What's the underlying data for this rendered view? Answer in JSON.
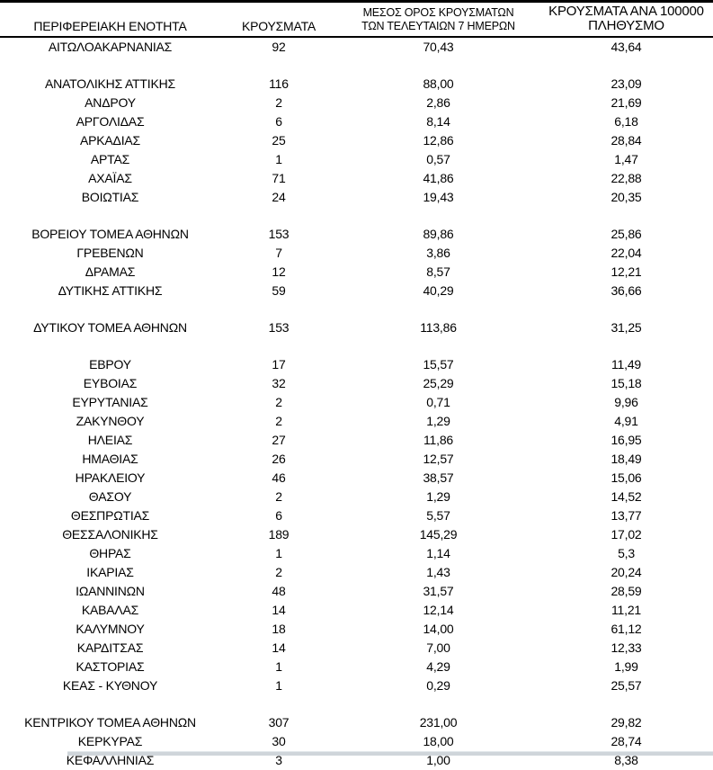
{
  "table": {
    "columns": [
      {
        "id": "region",
        "header_lines": [
          "ΠΕΡΙΦΕΡΕΙΑΚΗ ΕΝΟΤΗΤΑ"
        ]
      },
      {
        "id": "cases",
        "header_lines": [
          "ΚΡΟΥΣΜΑΤΑ"
        ]
      },
      {
        "id": "avg7",
        "header_lines": [
          "ΜΕΣΟΣ ΟΡΟΣ ΚΡΟΥΣΜΑΤΩΝ",
          "ΤΩΝ ΤΕΛΕΥΤΑΙΩΝ 7 ΗΜΕΡΩΝ"
        ]
      },
      {
        "id": "per100k",
        "header_lines": [
          "ΚΡΟΥΣΜΑΤΑ ΑΝΑ 100000",
          "ΠΛΗΘΥΣΜΟ"
        ]
      }
    ],
    "rows": [
      {
        "region": "ΑΙΤΩΛΟΑΚΑΡΝΑΝΙΑΣ",
        "cases": "92",
        "avg7": "70,43",
        "per100k": "43,64",
        "gap_after": true
      },
      {
        "region": "ΑΝΑΤΟΛΙΚΗΣ ΑΤΤΙΚΗΣ",
        "cases": "116",
        "avg7": "88,00",
        "per100k": "23,09"
      },
      {
        "region": "ΑΝΔΡΟΥ",
        "cases": "2",
        "avg7": "2,86",
        "per100k": "21,69"
      },
      {
        "region": "ΑΡΓΟΛΙΔΑΣ",
        "cases": "6",
        "avg7": "8,14",
        "per100k": "6,18"
      },
      {
        "region": "ΑΡΚΑΔΙΑΣ",
        "cases": "25",
        "avg7": "12,86",
        "per100k": "28,84"
      },
      {
        "region": "ΑΡΤΑΣ",
        "cases": "1",
        "avg7": "0,57",
        "per100k": "1,47"
      },
      {
        "region": "ΑΧΑΪΑΣ",
        "cases": "71",
        "avg7": "41,86",
        "per100k": "22,88"
      },
      {
        "region": "ΒΟΙΩΤΙΑΣ",
        "cases": "24",
        "avg7": "19,43",
        "per100k": "20,35",
        "gap_after": true
      },
      {
        "region": "ΒΟΡΕΙΟΥ ΤΟΜΕΑ ΑΘΗΝΩΝ",
        "cases": "153",
        "avg7": "89,86",
        "per100k": "25,86"
      },
      {
        "region": "ΓΡΕΒΕΝΩΝ",
        "cases": "7",
        "avg7": "3,86",
        "per100k": "22,04"
      },
      {
        "region": "ΔΡΑΜΑΣ",
        "cases": "12",
        "avg7": "8,57",
        "per100k": "12,21"
      },
      {
        "region": "ΔΥΤΙΚΗΣ ΑΤΤΙΚΗΣ",
        "cases": "59",
        "avg7": "40,29",
        "per100k": "36,66",
        "gap_after": true
      },
      {
        "region": "ΔΥΤΙΚΟΥ ΤΟΜΕΑ ΑΘΗΝΩΝ",
        "cases": "153",
        "avg7": "113,86",
        "per100k": "31,25",
        "gap_after": true
      },
      {
        "region": "ΕΒΡΟΥ",
        "cases": "17",
        "avg7": "15,57",
        "per100k": "11,49"
      },
      {
        "region": "ΕΥΒΟΙΑΣ",
        "cases": "32",
        "avg7": "25,29",
        "per100k": "15,18"
      },
      {
        "region": "ΕΥΡΥΤΑΝΙΑΣ",
        "cases": "2",
        "avg7": "0,71",
        "per100k": "9,96"
      },
      {
        "region": "ΖΑΚΥΝΘΟΥ",
        "cases": "2",
        "avg7": "1,29",
        "per100k": "4,91"
      },
      {
        "region": "ΗΛΕΙΑΣ",
        "cases": "27",
        "avg7": "11,86",
        "per100k": "16,95"
      },
      {
        "region": "ΗΜΑΘΙΑΣ",
        "cases": "26",
        "avg7": "12,57",
        "per100k": "18,49"
      },
      {
        "region": "ΗΡΑΚΛΕΙΟΥ",
        "cases": "46",
        "avg7": "38,57",
        "per100k": "15,06"
      },
      {
        "region": "ΘΑΣΟΥ",
        "cases": "2",
        "avg7": "1,29",
        "per100k": "14,52"
      },
      {
        "region": "ΘΕΣΠΡΩΤΙΑΣ",
        "cases": "6",
        "avg7": "5,57",
        "per100k": "13,77"
      },
      {
        "region": "ΘΕΣΣΑΛΟΝΙΚΗΣ",
        "cases": "189",
        "avg7": "145,29",
        "per100k": "17,02"
      },
      {
        "region": "ΘΗΡΑΣ",
        "cases": "1",
        "avg7": "1,14",
        "per100k": "5,3"
      },
      {
        "region": "ΙΚΑΡΙΑΣ",
        "cases": "2",
        "avg7": "1,43",
        "per100k": "20,24"
      },
      {
        "region": "ΙΩΑΝΝΙΝΩΝ",
        "cases": "48",
        "avg7": "31,57",
        "per100k": "28,59"
      },
      {
        "region": "ΚΑΒΑΛΑΣ",
        "cases": "14",
        "avg7": "12,14",
        "per100k": "11,21"
      },
      {
        "region": "ΚΑΛΥΜΝΟΥ",
        "cases": "18",
        "avg7": "14,00",
        "per100k": "61,12"
      },
      {
        "region": "ΚΑΡΔΙΤΣΑΣ",
        "cases": "14",
        "avg7": "7,00",
        "per100k": "12,33"
      },
      {
        "region": "ΚΑΣΤΟΡΙΑΣ",
        "cases": "1",
        "avg7": "4,29",
        "per100k": "1,99"
      },
      {
        "region": "ΚΕΑΣ - ΚΥΘΝΟΥ",
        "cases": "1",
        "avg7": "0,29",
        "per100k": "25,57",
        "gap_after": true
      },
      {
        "region": "ΚΕΝΤΡΙΚΟΥ ΤΟΜΕΑ ΑΘΗΝΩΝ",
        "cases": "307",
        "avg7": "231,00",
        "per100k": "29,82"
      },
      {
        "region": "ΚΕΡΚΥΡΑΣ",
        "cases": "30",
        "avg7": "18,00",
        "per100k": "28,74"
      },
      {
        "region": "ΚΕΦΑΛΛΗΝΙΑΣ",
        "cases": "3",
        "avg7": "1,00",
        "per100k": "8,38"
      }
    ]
  },
  "colors": {
    "top_border": "#000000",
    "header_rule": "#000000",
    "text": "#000000",
    "scrollbar": "#cfd5da"
  }
}
